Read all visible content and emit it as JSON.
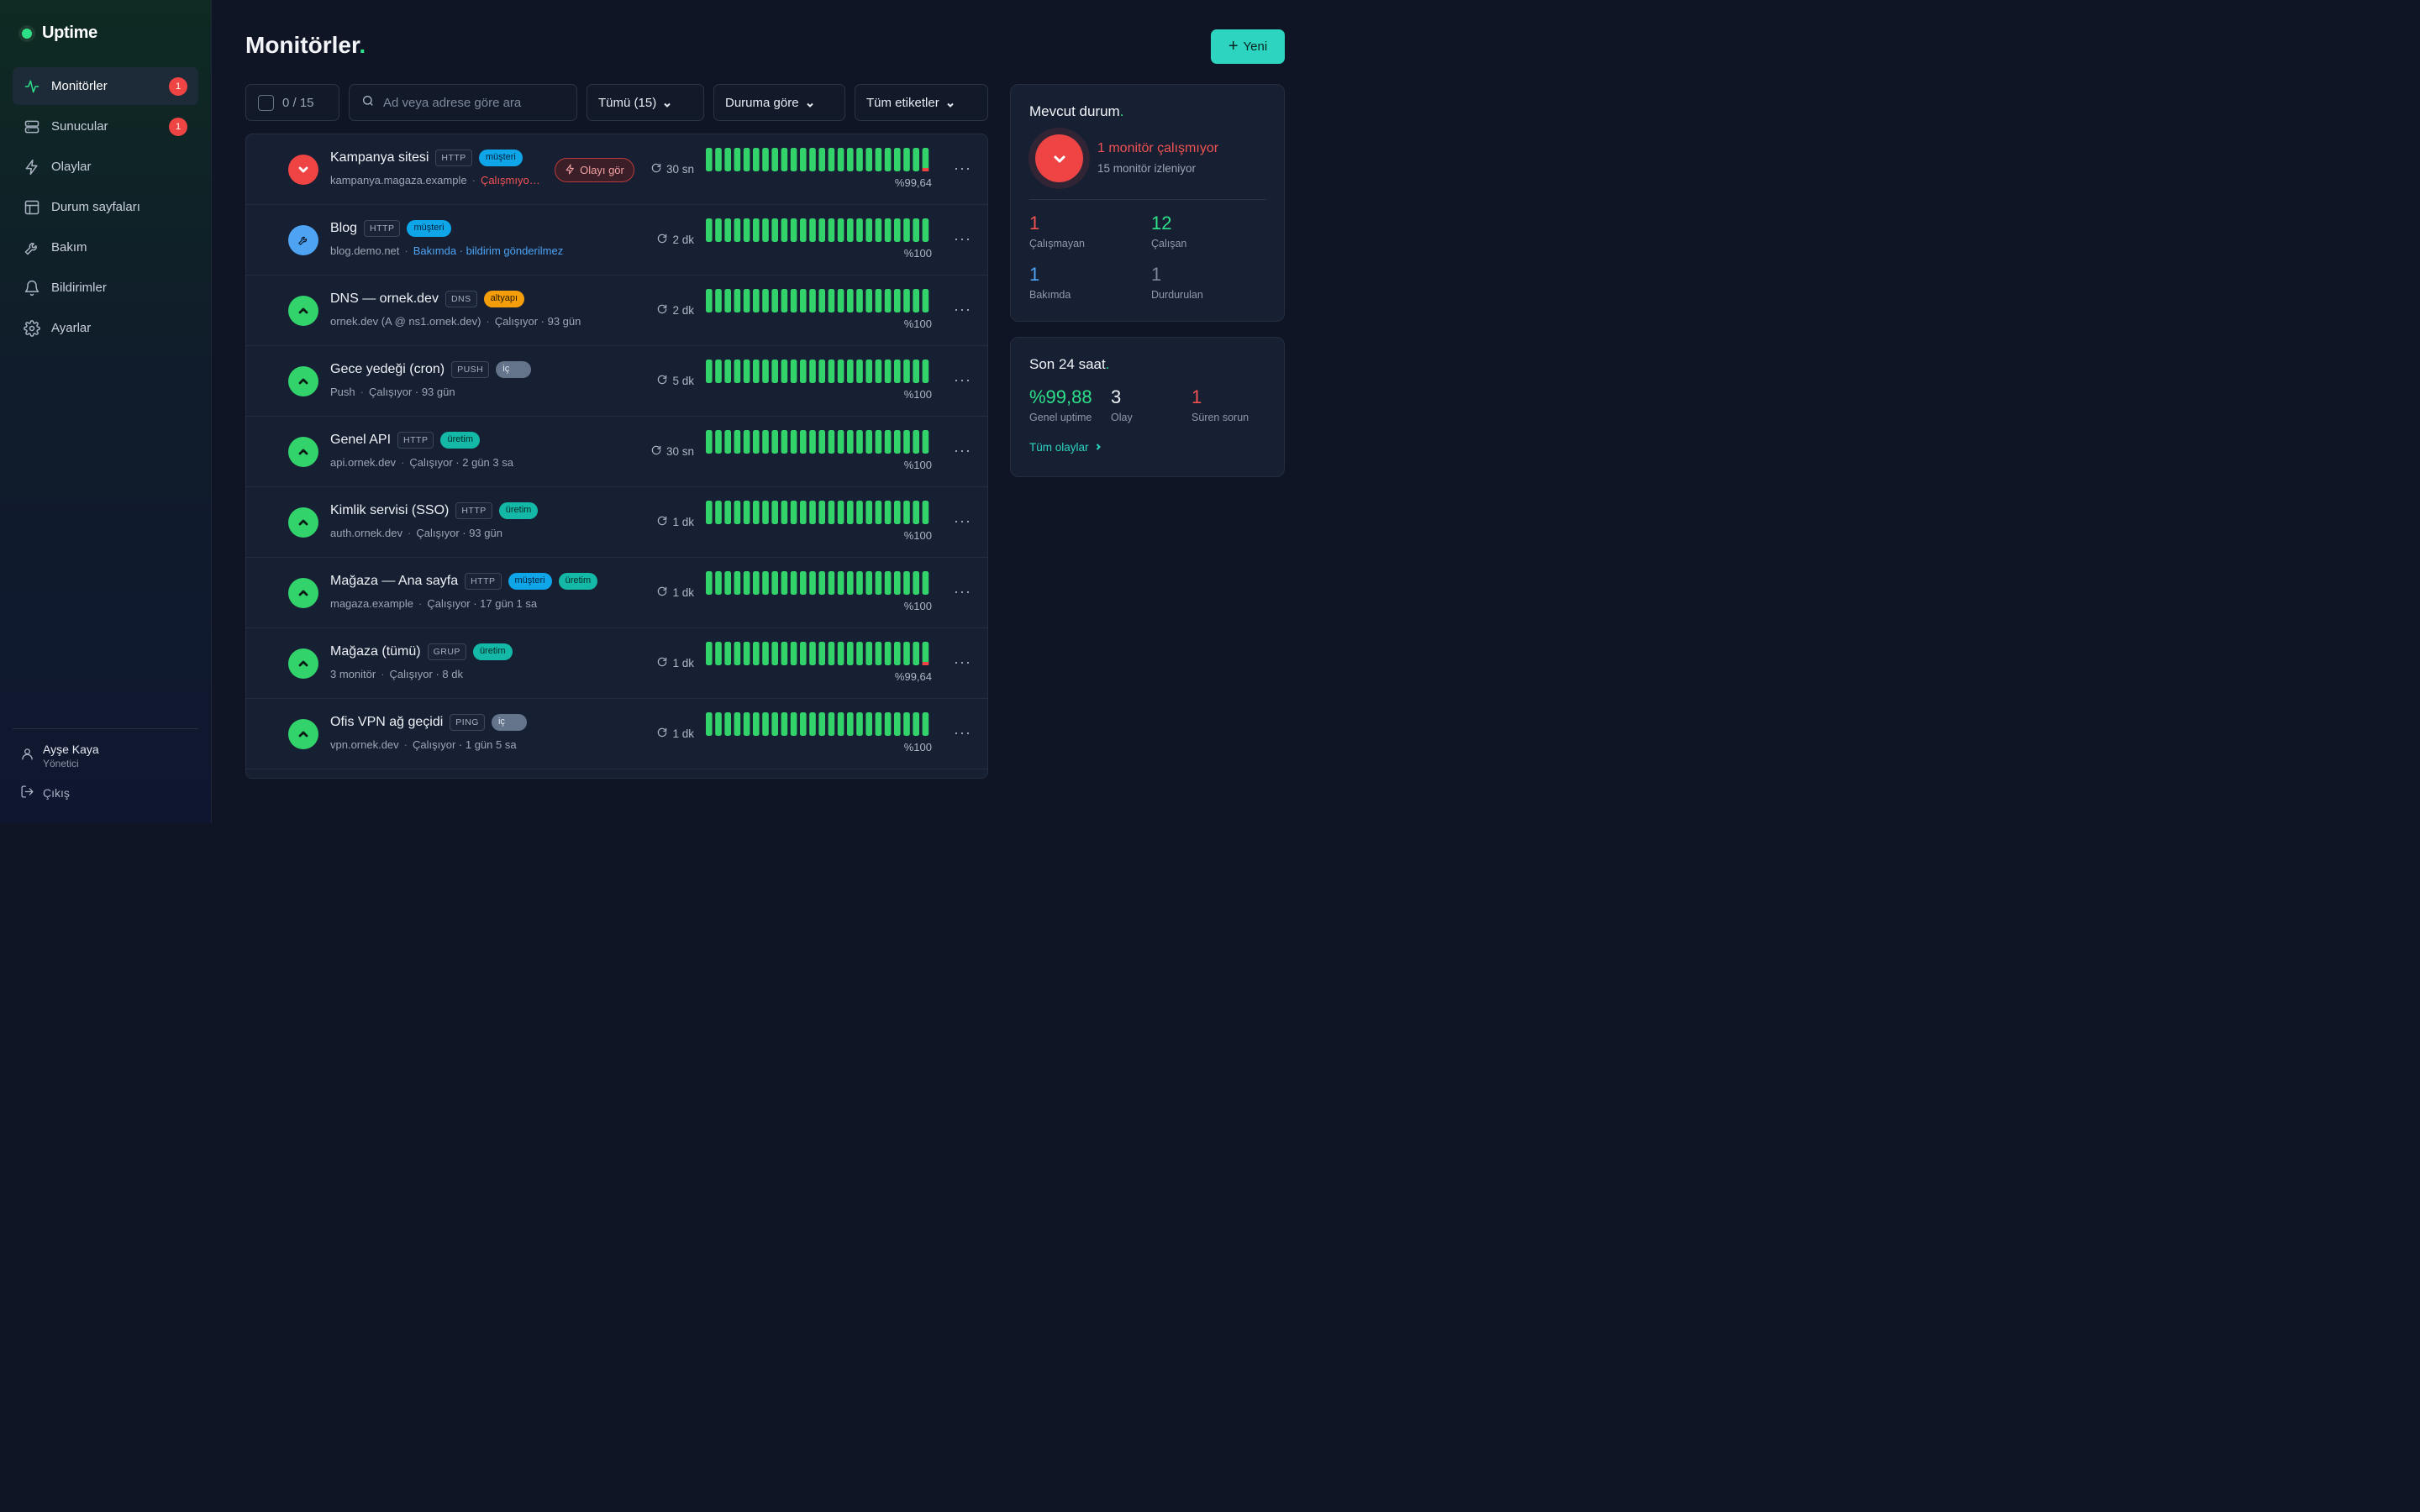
{
  "app": {
    "name": "Uptime"
  },
  "sidebar": {
    "items": [
      {
        "label": "Monitörler",
        "badge": "1",
        "icon": "activity-icon",
        "active": true
      },
      {
        "label": "Sunucular",
        "badge": "1",
        "icon": "server-icon"
      },
      {
        "label": "Olaylar",
        "badge": null,
        "icon": "lightning-icon"
      },
      {
        "label": "Durum sayfaları",
        "badge": null,
        "icon": "layout-icon"
      },
      {
        "label": "Bakım",
        "badge": null,
        "icon": "wrench-icon"
      },
      {
        "label": "Bildirimler",
        "badge": null,
        "icon": "bell-icon"
      },
      {
        "label": "Ayarlar",
        "badge": null,
        "icon": "gear-icon"
      }
    ],
    "user": {
      "name": "Ayşe Kaya",
      "role": "Yönetici"
    },
    "logout_label": "Çıkış"
  },
  "header": {
    "title": "Monitörler",
    "title_dot": ".",
    "new_label": "Yeni"
  },
  "filters": {
    "selection": "0 / 15",
    "search_placeholder": "Ad veya adrese göre ara",
    "type": "Tümü (15)",
    "status": "Duruma göre",
    "tags": "Tüm etiketler"
  },
  "monitors": [
    {
      "name": "Kampanya sitesi",
      "type": "HTTP",
      "tags": [
        {
          "label": "müşteri",
          "kind": "musteri"
        }
      ],
      "address": "kampanya.magaza.example",
      "status_text": "Çalışmıyo…",
      "status": "down",
      "incident_label": "Olayı gör",
      "interval": "30 sn",
      "uptime": "%99,64",
      "last_bar_down": true
    },
    {
      "name": "Blog",
      "type": "HTTP",
      "tags": [
        {
          "label": "müşteri",
          "kind": "musteri"
        }
      ],
      "address": "blog.demo.net",
      "status_text": "Bakımda · bildirim gönderilmez",
      "status": "maintenance",
      "interval": "2 dk",
      "uptime": "%100",
      "last_bar_down": false
    },
    {
      "name": "DNS — ornek.dev",
      "type": "DNS",
      "tags": [
        {
          "label": "altyapı",
          "kind": "altyapi"
        }
      ],
      "address": "ornek.dev (A @ ns1.ornek.dev)",
      "status_text": "Çalışıyor · 93 gün",
      "status": "up",
      "interval": "2 dk",
      "uptime": "%100",
      "last_bar_down": false
    },
    {
      "name": "Gece yedeği (cron)",
      "type": "PUSH",
      "tags": [
        {
          "label": "iç",
          "kind": "ic"
        }
      ],
      "address": "Push",
      "status_text": "Çalışıyor · 93 gün",
      "status": "up",
      "interval": "5 dk",
      "uptime": "%100",
      "last_bar_down": false
    },
    {
      "name": "Genel API",
      "type": "HTTP",
      "tags": [
        {
          "label": "üretim",
          "kind": "uretim"
        }
      ],
      "address": "api.ornek.dev",
      "status_text": "Çalışıyor · 2 gün 3 sa",
      "status": "up",
      "interval": "30 sn",
      "uptime": "%100",
      "last_bar_down": false
    },
    {
      "name": "Kimlik servisi (SSO)",
      "type": "HTTP",
      "tags": [
        {
          "label": "üretim",
          "kind": "uretim"
        }
      ],
      "address": "auth.ornek.dev",
      "status_text": "Çalışıyor · 93 gün",
      "status": "up",
      "interval": "1 dk",
      "uptime": "%100",
      "last_bar_down": false
    },
    {
      "name": "Mağaza — Ana sayfa",
      "type": "HTTP",
      "tags": [
        {
          "label": "müşteri",
          "kind": "musteri"
        },
        {
          "label": "üretim",
          "kind": "uretim"
        }
      ],
      "address": "magaza.example",
      "status_text": "Çalışıyor · 17 gün 1 sa",
      "status": "up",
      "interval": "1 dk",
      "uptime": "%100",
      "last_bar_down": false
    },
    {
      "name": "Mağaza (tümü)",
      "type": "GRUP",
      "tags": [
        {
          "label": "üretim",
          "kind": "uretim"
        }
      ],
      "address": "3 monitör",
      "status_text": "Çalışıyor · 8 dk",
      "status": "up",
      "interval": "1 dk",
      "uptime": "%99,64",
      "last_bar_down": true
    },
    {
      "name": "Ofis VPN ağ geçidi",
      "type": "PING",
      "tags": [
        {
          "label": "iç",
          "kind": "ic"
        }
      ],
      "address": "vpn.ornek.dev",
      "status_text": "Çalışıyor · 1 gün 5 sa",
      "status": "up",
      "interval": "1 dk",
      "uptime": "%100",
      "last_bar_down": false
    }
  ],
  "current": {
    "title": "Mevcut durum",
    "headline": "1 monitör çalışmıyor",
    "subline": "15 monitör izleniyor",
    "stats": [
      {
        "value": "1",
        "label": "Çalışmayan",
        "color": "#f05252"
      },
      {
        "value": "12",
        "label": "Çalışan",
        "color": "#2ee08a"
      },
      {
        "value": "1",
        "label": "Bakımda",
        "color": "#4ea3f2"
      },
      {
        "value": "1",
        "label": "Durdurulan",
        "color": "#7d8699"
      }
    ]
  },
  "last24": {
    "title": "Son 24 saat",
    "stats": [
      {
        "value": "%99,88",
        "label": "Genel uptime"
      },
      {
        "value": "3",
        "label": "Olay"
      },
      {
        "value": "1",
        "label": "Süren sorun"
      }
    ],
    "link": "Tüm olaylar"
  },
  "colors": {
    "accent": "#2dd4bf",
    "up": "#33d36c",
    "down": "#ef4444",
    "maintenance": "#4ea3f2"
  }
}
